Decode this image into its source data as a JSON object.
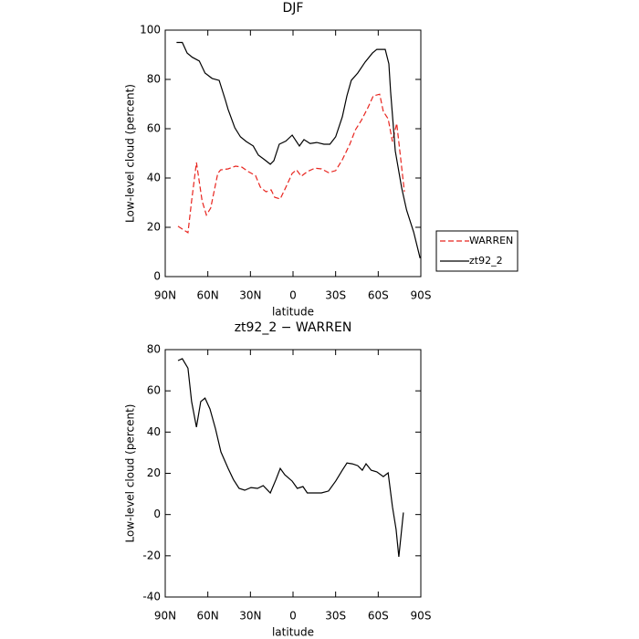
{
  "chart_data": [
    {
      "type": "line",
      "title": "DJF",
      "x_label": "latitude",
      "y_label": "Low-level cloud (percent)",
      "xlim": [
        90,
        -90
      ],
      "ylim": [
        0,
        100
      ],
      "xticks": [
        {
          "value": 90,
          "label": "90N"
        },
        {
          "value": 60,
          "label": "60N"
        },
        {
          "value": 30,
          "label": "30N"
        },
        0,
        {
          "value": -30,
          "label": "30S"
        },
        {
          "value": -60,
          "label": "60S"
        },
        {
          "value": -90,
          "label": "90S"
        }
      ],
      "yticks": [
        0,
        20,
        40,
        60,
        80,
        100
      ],
      "legend": "right",
      "series": [
        {
          "name": "WARREN",
          "color": "#e8251f",
          "style": "dashed",
          "x": [
            81,
            74,
            71.4,
            68,
            64,
            61,
            58,
            53,
            51,
            45.7,
            40.5,
            36,
            31.5,
            26.4,
            23,
            19,
            15.4,
            12.9,
            9,
            5,
            0.6,
            -2.5,
            -5.8,
            -10,
            -15.4,
            -20,
            -25,
            -30,
            -34.7,
            -40,
            -44,
            -48,
            -52.7,
            -56.5,
            -61,
            -63.6,
            -67,
            -70,
            -73,
            -78.4
          ],
          "values": [
            20.4,
            17.8,
            30.7,
            46.3,
            30.7,
            25,
            27.8,
            41.9,
            43.3,
            43.7,
            44.8,
            44.4,
            42.6,
            41,
            36.3,
            34.4,
            35.2,
            32.2,
            31.5,
            36.3,
            41.9,
            43.3,
            40.7,
            42.6,
            44,
            43.7,
            42.2,
            43,
            47.4,
            53.7,
            59.6,
            63.3,
            68.5,
            73.3,
            74,
            67,
            64,
            54.8,
            62.2,
            34.4
          ]
        },
        {
          "name": "zt92_2",
          "color": "#000000",
          "style": "solid",
          "x": [
            82,
            78,
            74.6,
            71,
            66,
            62,
            57,
            52,
            47.6,
            45.7,
            41,
            37,
            33,
            28,
            24.4,
            20,
            16,
            13.5,
            9.7,
            5,
            0.6,
            -4.5,
            -7.7,
            -12,
            -16.7,
            -21.8,
            -26,
            -30,
            -34.7,
            -37.9,
            -41,
            -45.6,
            -50.7,
            -55.9,
            -59,
            -64.9,
            -67.5,
            -68.7,
            -72,
            -76.5,
            -80,
            -85,
            -89.5
          ],
          "values": [
            95,
            95,
            90.7,
            89,
            87.5,
            82.6,
            80.4,
            79.6,
            71.5,
            67.8,
            60.4,
            56.7,
            54.8,
            53,
            49.3,
            47.4,
            45.6,
            47,
            53.7,
            55,
            57.4,
            53,
            55.6,
            54,
            54.4,
            53.7,
            53.7,
            56.7,
            64.8,
            73.3,
            79.6,
            82.6,
            87,
            90.7,
            92.2,
            92.2,
            86.3,
            75,
            51,
            36,
            27,
            18,
            7.5
          ]
        }
      ]
    },
    {
      "type": "line",
      "title": "zt92_2 − WARREN",
      "x_label": "latitude",
      "y_label": "Low-level cloud (percent)",
      "xlim": [
        90,
        -90
      ],
      "ylim": [
        -40,
        80
      ],
      "xticks": [
        {
          "value": 90,
          "label": "90N"
        },
        {
          "value": 60,
          "label": "60N"
        },
        {
          "value": 30,
          "label": "30N"
        },
        0,
        {
          "value": -30,
          "label": "30S"
        },
        {
          "value": -60,
          "label": "60S"
        },
        {
          "value": -90,
          "label": "90S"
        }
      ],
      "yticks": [
        -40,
        -20,
        0,
        20,
        40,
        60,
        80
      ],
      "series": [
        {
          "color": "#000000",
          "style": "solid",
          "x": [
            81,
            78,
            74,
            71.4,
            68,
            65,
            62,
            58.5,
            54.6,
            50.8,
            45.7,
            42,
            38,
            34,
            29.6,
            25,
            21,
            16,
            12,
            9,
            5.8,
            0.6,
            -3,
            -7,
            -10,
            -15.4,
            -20,
            -25,
            -30,
            -34.7,
            -38,
            -41.7,
            -45.6,
            -48.8,
            -51.4,
            -55,
            -59,
            -63.6,
            -67,
            -70,
            -72.6,
            -74.5,
            -77.7
          ],
          "values": [
            74.7,
            75.6,
            71,
            54.8,
            42.4,
            54.8,
            56.5,
            51.2,
            41.5,
            30.4,
            22.4,
            17,
            12.7,
            11.8,
            13.1,
            12.7,
            14,
            10.5,
            17,
            22.4,
            19.3,
            16.2,
            12.7,
            13.6,
            10.5,
            10.5,
            10.5,
            11.4,
            16.2,
            21.5,
            25,
            24.6,
            23.7,
            21.5,
            24.6,
            21.5,
            20.7,
            18.4,
            20.2,
            3.8,
            -7.2,
            -20.5,
            1
          ]
        }
      ]
    }
  ]
}
